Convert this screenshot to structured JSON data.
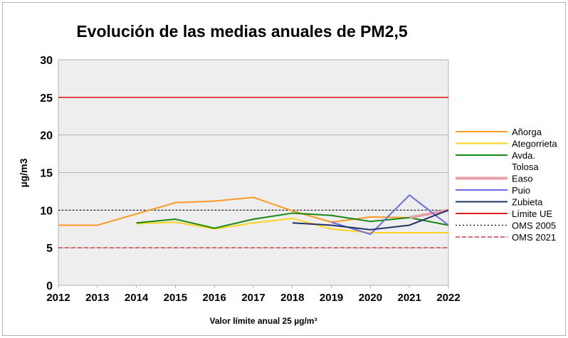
{
  "chart_data": {
    "type": "line",
    "title": "Evolución de las medias anuales de PM2,5",
    "xlabel": "Valor límite anual 25 µg/m³",
    "ylabel": "µg/m3",
    "ylim": [
      0,
      30
    ],
    "yticks": [
      "0",
      "5",
      "10",
      "15",
      "20",
      "25",
      "30"
    ],
    "x": [
      "2012",
      "2013",
      "2014",
      "2015",
      "2016",
      "2017",
      "2018",
      "2019",
      "2020",
      "2021",
      "2022"
    ],
    "grid": true,
    "legend_position": "right",
    "series": [
      {
        "name": "Añorga",
        "color": "#ff9b21",
        "values": [
          8.0,
          8.0,
          9.5,
          11.0,
          11.2,
          11.7,
          9.9,
          8.4,
          9.1,
          9.0,
          null
        ]
      },
      {
        "name": "Ategorrieta",
        "color": "#ffd320",
        "values": [
          null,
          null,
          8.2,
          8.4,
          7.5,
          8.3,
          8.9,
          7.5,
          7.0,
          7.0,
          7.0
        ]
      },
      {
        "name": "Avda. Tolosa",
        "color": "#168a16",
        "values": [
          null,
          null,
          8.3,
          8.8,
          7.6,
          8.8,
          9.6,
          9.3,
          8.5,
          9.0,
          8.0
        ]
      },
      {
        "name": "Easo",
        "color": "#e8a0a8",
        "values": [
          null,
          null,
          null,
          null,
          null,
          null,
          null,
          null,
          null,
          9.0,
          10.0
        ]
      },
      {
        "name": "Puio",
        "color": "#6b6bef",
        "values": [
          null,
          null,
          null,
          null,
          null,
          null,
          null,
          8.4,
          6.8,
          12.0,
          8.0
        ]
      },
      {
        "name": "Zubieta",
        "color": "#1f3366",
        "values": [
          null,
          null,
          null,
          null,
          null,
          null,
          8.3,
          8.0,
          7.4,
          8.0,
          10.0
        ]
      }
    ],
    "reference_lines": [
      {
        "name": "Límite UE",
        "value": 25,
        "color": "#e02020",
        "style": "solid"
      },
      {
        "name": "OMS 2005",
        "value": 10,
        "color": "#000000",
        "style": "dotted"
      },
      {
        "name": "OMS 2021",
        "value": 5,
        "color": "#c0151a",
        "style": "dashed"
      }
    ]
  }
}
